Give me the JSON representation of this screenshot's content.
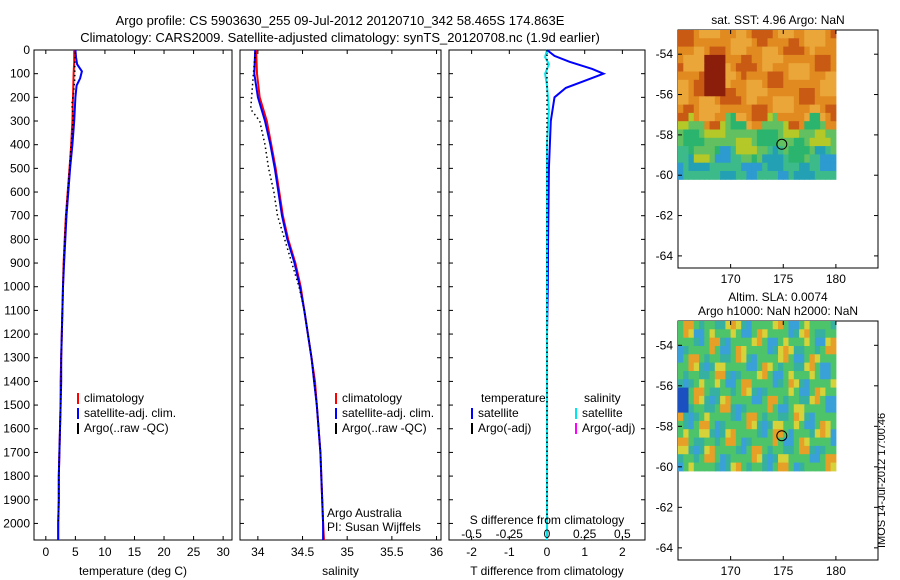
{
  "title": {
    "line1": "Argo profile: CS 5903630_255 09-Jul-2012 20120710_342 58.465S 174.863E",
    "line2": "Climatology: CARS2009. Satellite-adjusted climatology: synTS_20120708.nc (1.9d earlier)"
  },
  "footer": {
    "imos_stamp": "IMOS 14-Jul-2012 17:00:46"
  },
  "colors": {
    "climatology": "#ff0000",
    "satellite": "#0000ff",
    "argo": "#000000",
    "salinity_satellite": "#00e5ee",
    "salinity_argo": "#ff00ff"
  },
  "legend": {
    "climatology": "climatology",
    "satellite_adj": "satellite-adj. clim.",
    "argo_raw": "Argo(..raw -QC)",
    "temperature_header": "temperature",
    "salinity_header": "salinity",
    "satellite": "satellite",
    "argo_adj": "Argo(-adj)"
  },
  "annotations": {
    "argo_australia": "Argo Australia",
    "pi": "PI: Susan Wijffels",
    "s_diff_label": "S difference from climatology",
    "s_diff_ticks": [
      "-0.5",
      "-0.25",
      "0",
      "0.25",
      "0.5"
    ]
  },
  "chart_data": [
    {
      "type": "line",
      "xlabel": "temperature (deg C)",
      "ylabel": "",
      "xlim": [
        -2,
        31.5
      ],
      "ylim": [
        2070,
        0
      ],
      "xticks": [
        0,
        5,
        10,
        15,
        20,
        25,
        30
      ],
      "yticks": [
        0,
        100,
        200,
        300,
        400,
        500,
        600,
        700,
        800,
        900,
        1000,
        1100,
        1200,
        1300,
        1400,
        1500,
        1600,
        1700,
        1800,
        1900,
        2000
      ],
      "grid": false,
      "legend_position": "lower-middle",
      "series": [
        {
          "name": "climatology",
          "color": "#ff0000",
          "points": [
            [
              4.8,
              0
            ],
            [
              4.8,
              50
            ],
            [
              4.7,
              100
            ],
            [
              4.6,
              200
            ],
            [
              4.5,
              300
            ],
            [
              4.3,
              400
            ],
            [
              4.0,
              500
            ],
            [
              3.7,
              600
            ],
            [
              3.4,
              700
            ],
            [
              3.2,
              800
            ],
            [
              3.0,
              900
            ],
            [
              2.9,
              1000
            ],
            [
              2.8,
              1100
            ],
            [
              2.7,
              1200
            ],
            [
              2.6,
              1300
            ],
            [
              2.5,
              1400
            ],
            [
              2.5,
              1500
            ],
            [
              2.4,
              1600
            ],
            [
              2.3,
              1700
            ],
            [
              2.2,
              1800
            ],
            [
              2.2,
              1900
            ],
            [
              2.1,
              2000
            ],
            [
              2.1,
              2070
            ]
          ]
        },
        {
          "name": "satellite-adj. clim.",
          "color": "#0000ff",
          "points": [
            [
              5.0,
              0
            ],
            [
              5.1,
              30
            ],
            [
              5.3,
              60
            ],
            [
              6.1,
              90
            ],
            [
              5.8,
              120
            ],
            [
              5.2,
              150
            ],
            [
              5.0,
              200
            ],
            [
              4.8,
              300
            ],
            [
              4.5,
              400
            ],
            [
              4.1,
              500
            ],
            [
              3.8,
              600
            ],
            [
              3.5,
              700
            ],
            [
              3.3,
              800
            ],
            [
              3.1,
              900
            ],
            [
              2.9,
              1000
            ],
            [
              2.8,
              1100
            ],
            [
              2.7,
              1200
            ],
            [
              2.6,
              1300
            ],
            [
              2.6,
              1400
            ],
            [
              2.5,
              1500
            ],
            [
              2.4,
              1600
            ],
            [
              2.3,
              1700
            ],
            [
              2.2,
              1800
            ],
            [
              2.2,
              1900
            ],
            [
              2.1,
              2000
            ],
            [
              2.1,
              2070
            ]
          ]
        },
        {
          "name": "Argo(..raw -QC)",
          "color": "#000000",
          "style": "dotted",
          "points": [
            [
              5.0,
              10
            ],
            [
              4.9,
              60
            ],
            [
              4.9,
              120
            ],
            [
              4.7,
              180
            ],
            [
              4.4,
              230
            ],
            [
              4.6,
              270
            ],
            [
              4.6,
              300
            ],
            [
              4.3,
              400
            ],
            [
              4.0,
              500
            ],
            [
              3.7,
              600
            ],
            [
              3.4,
              700
            ],
            [
              3.2,
              800
            ],
            [
              3.0,
              900
            ],
            [
              2.9,
              1000
            ],
            [
              2.8,
              1100
            ],
            [
              2.7,
              1200
            ],
            [
              2.6,
              1300
            ],
            [
              2.6,
              1400
            ],
            [
              2.5,
              1500
            ],
            [
              2.4,
              1600
            ],
            [
              2.3,
              1700
            ],
            [
              2.2,
              1800
            ],
            [
              2.2,
              1900
            ],
            [
              2.1,
              2000
            ]
          ]
        }
      ]
    },
    {
      "type": "line",
      "xlabel": "salinity",
      "xlim": [
        33.8,
        36.05
      ],
      "ylim": [
        2070,
        0
      ],
      "xticks": [
        34,
        34.5,
        35,
        35.5,
        36
      ],
      "legend_position": "lower-right",
      "series": [
        {
          "name": "climatology",
          "color": "#ff0000",
          "points": [
            [
              33.98,
              0
            ],
            [
              33.99,
              100
            ],
            [
              34.02,
              200
            ],
            [
              34.1,
              300
            ],
            [
              34.15,
              400
            ],
            [
              34.2,
              500
            ],
            [
              34.24,
              600
            ],
            [
              34.28,
              700
            ],
            [
              34.34,
              800
            ],
            [
              34.42,
              900
            ],
            [
              34.48,
              1000
            ],
            [
              34.52,
              1100
            ],
            [
              34.56,
              1200
            ],
            [
              34.6,
              1300
            ],
            [
              34.64,
              1400
            ],
            [
              34.66,
              1500
            ],
            [
              34.68,
              1600
            ],
            [
              34.7,
              1700
            ],
            [
              34.71,
              1800
            ],
            [
              34.72,
              1900
            ],
            [
              34.73,
              2000
            ],
            [
              34.74,
              2070
            ]
          ]
        },
        {
          "name": "satellite-adj. clim.",
          "color": "#0000ff",
          "points": [
            [
              33.97,
              0
            ],
            [
              33.96,
              100
            ],
            [
              34.0,
              200
            ],
            [
              34.08,
              300
            ],
            [
              34.14,
              400
            ],
            [
              34.19,
              500
            ],
            [
              34.23,
              600
            ],
            [
              34.27,
              700
            ],
            [
              34.33,
              800
            ],
            [
              34.41,
              900
            ],
            [
              34.47,
              1000
            ],
            [
              34.52,
              1100
            ],
            [
              34.56,
              1200
            ],
            [
              34.6,
              1300
            ],
            [
              34.63,
              1400
            ],
            [
              34.66,
              1500
            ],
            [
              34.68,
              1600
            ],
            [
              34.7,
              1700
            ],
            [
              34.71,
              1800
            ],
            [
              34.72,
              1900
            ],
            [
              34.73,
              2000
            ],
            [
              34.73,
              2070
            ]
          ]
        },
        {
          "name": "Argo(..raw -QC)",
          "color": "#000000",
          "style": "dotted",
          "points": [
            [
              33.97,
              10
            ],
            [
              33.95,
              100
            ],
            [
              33.93,
              200
            ],
            [
              33.92,
              250
            ],
            [
              34.02,
              300
            ],
            [
              34.08,
              400
            ],
            [
              34.12,
              500
            ],
            [
              34.18,
              600
            ],
            [
              34.22,
              700
            ],
            [
              34.3,
              800
            ],
            [
              34.38,
              900
            ],
            [
              34.46,
              1000
            ],
            [
              34.52,
              1100
            ],
            [
              34.56,
              1200
            ],
            [
              34.6,
              1300
            ],
            [
              34.63,
              1400
            ],
            [
              34.66,
              1500
            ],
            [
              34.68,
              1600
            ],
            [
              34.7,
              1700
            ],
            [
              34.71,
              1800
            ],
            [
              34.72,
              1900
            ],
            [
              34.73,
              2000
            ]
          ]
        }
      ]
    },
    {
      "type": "line",
      "xlabel": "T difference from climatology",
      "xlim": [
        -2.6,
        2.6
      ],
      "ylim": [
        2070,
        0
      ],
      "xticks": [
        -2,
        -1,
        0,
        1,
        2
      ],
      "legend_position": "lower-middle",
      "series": [
        {
          "name": "satellite",
          "variable": "temperature",
          "color": "#0000ff",
          "points": [
            [
              0.0,
              0
            ],
            [
              0.2,
              25
            ],
            [
              0.6,
              50
            ],
            [
              1.2,
              80
            ],
            [
              1.5,
              100
            ],
            [
              1.0,
              130
            ],
            [
              0.5,
              160
            ],
            [
              0.2,
              200
            ],
            [
              0.1,
              300
            ],
            [
              0.05,
              500
            ],
            [
              0.03,
              800
            ],
            [
              0.02,
              1000
            ],
            [
              0.0,
              1200
            ],
            [
              0.0,
              1500
            ],
            [
              0.0,
              2070
            ]
          ]
        },
        {
          "name": "satellite",
          "variable": "salinity",
          "color": "#00e5ee",
          "points": [
            [
              0.0,
              0
            ],
            [
              -0.05,
              30
            ],
            [
              0.05,
              60
            ],
            [
              -0.05,
              100
            ],
            [
              0.0,
              150
            ],
            [
              0.05,
              250
            ],
            [
              0.0,
              400
            ],
            [
              0.0,
              600
            ],
            [
              0.0,
              800
            ],
            [
              0.0,
              1000
            ],
            [
              0.0,
              1300
            ],
            [
              0.0,
              1600
            ],
            [
              0.0,
              2070
            ]
          ]
        },
        {
          "name": "Argo(-adj)",
          "variable": "temperature",
          "color": "#000000",
          "style": "dotted",
          "points": [
            [
              0.0,
              0
            ],
            [
              0.0,
              250
            ],
            [
              0.0,
              2000
            ]
          ]
        }
      ]
    },
    {
      "type": "heatmap",
      "title": "sat. SST: 4.96 Argo: NaN",
      "xlim": [
        165,
        184
      ],
      "ylim": [
        -64.6,
        -52.8
      ],
      "xticks": [
        170,
        175,
        180
      ],
      "yticks": [
        -54,
        -56,
        -58,
        -60,
        -62,
        -64
      ],
      "data_extent": {
        "lon": [
          165,
          180
        ],
        "lat": [
          -60.2,
          -52.8
        ]
      },
      "marker": {
        "lon": 174.863,
        "lat": -58.465
      }
    },
    {
      "type": "heatmap",
      "title": "Altim. SLA: 0.0074",
      "subtitle": "Argo h1000: NaN h2000: NaN",
      "xlim": [
        165,
        184
      ],
      "ylim": [
        -64.6,
        -52.8
      ],
      "xticks": [
        170,
        175,
        180
      ],
      "yticks": [
        -54,
        -56,
        -58,
        -60,
        -62,
        -64
      ],
      "data_extent": {
        "lon": [
          165,
          180
        ],
        "lat": [
          -60.2,
          -52.8
        ]
      },
      "marker": {
        "lon": 174.863,
        "lat": -58.465
      }
    }
  ]
}
